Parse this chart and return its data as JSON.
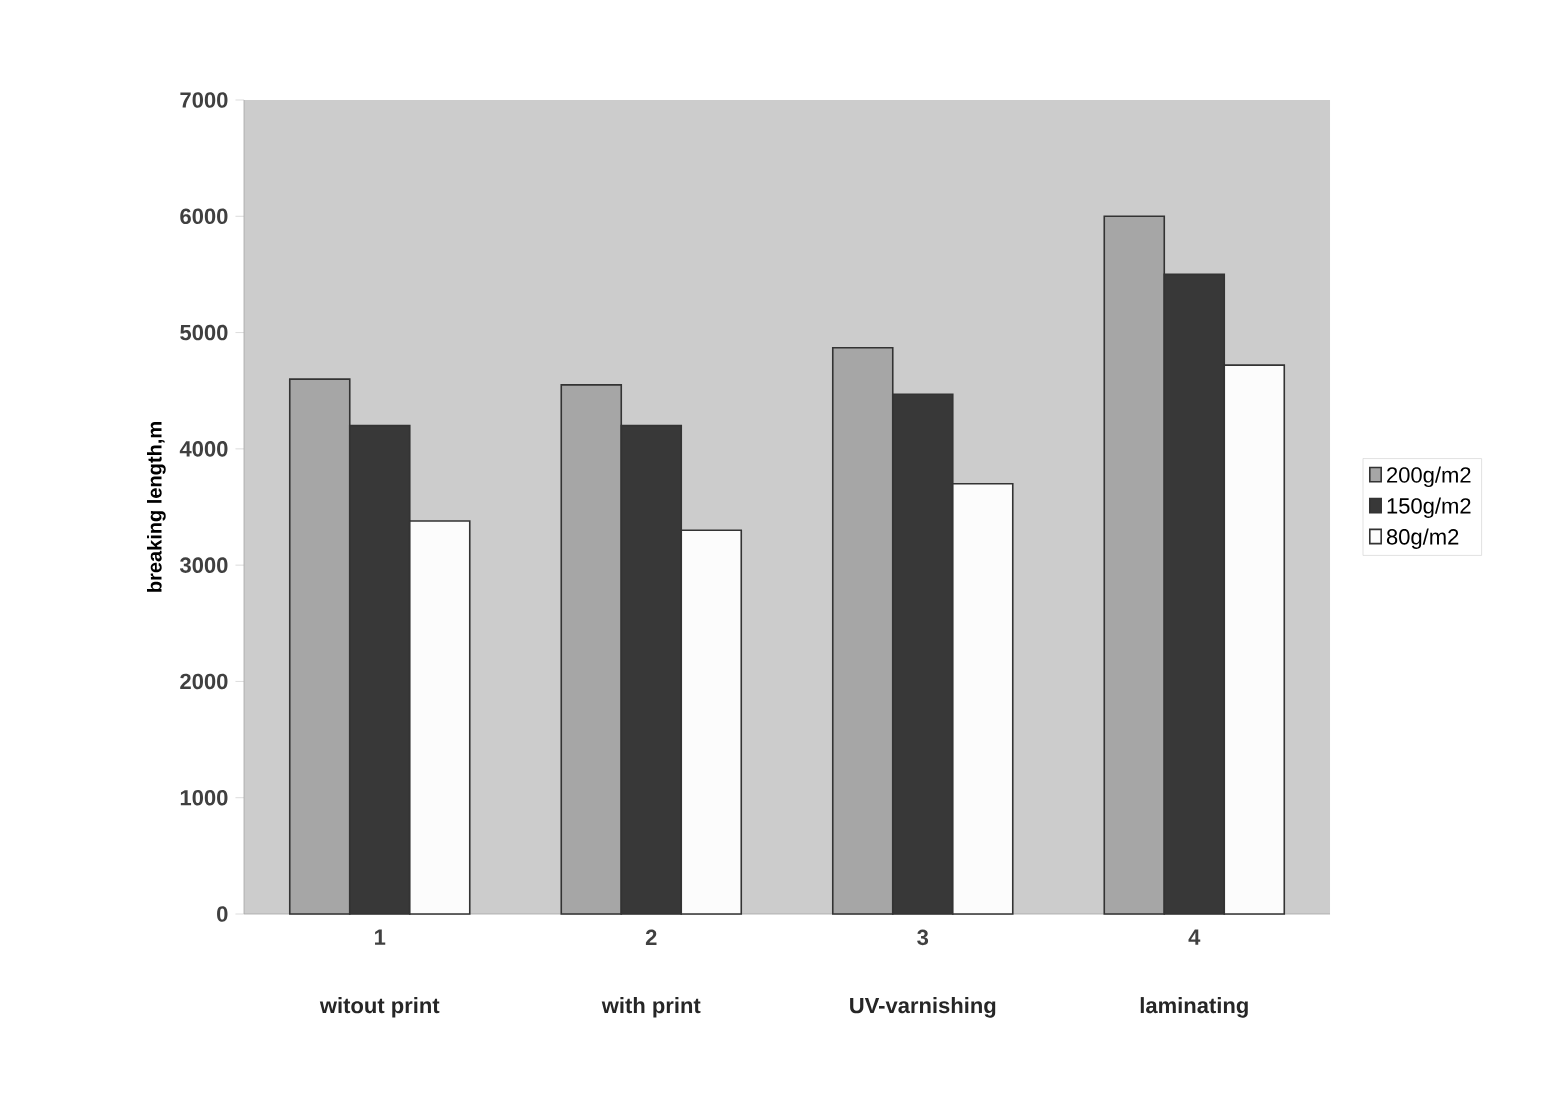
{
  "chart_data": {
    "type": "bar",
    "ylabel": "breaking length,m",
    "categories": [
      "1",
      "2",
      "3",
      "4"
    ],
    "series": [
      {
        "name": "200g/m2",
        "color": "#a6a6a6",
        "values": [
          4600,
          4550,
          4870,
          6000
        ]
      },
      {
        "name": "150g/m2",
        "color": "#383838",
        "values": [
          4200,
          4200,
          4470,
          5500
        ]
      },
      {
        "name": "80g/m2",
        "color": "#fcfcfc",
        "values": [
          3380,
          3300,
          3700,
          4720
        ]
      }
    ],
    "annotations": [
      "witout print",
      "with print",
      "UV-varnishing",
      "laminating"
    ],
    "ylim": [
      0,
      7000
    ],
    "yticks": [
      0,
      1000,
      2000,
      3000,
      4000,
      5000,
      6000,
      7000
    ],
    "legend": "right",
    "grid": false
  }
}
